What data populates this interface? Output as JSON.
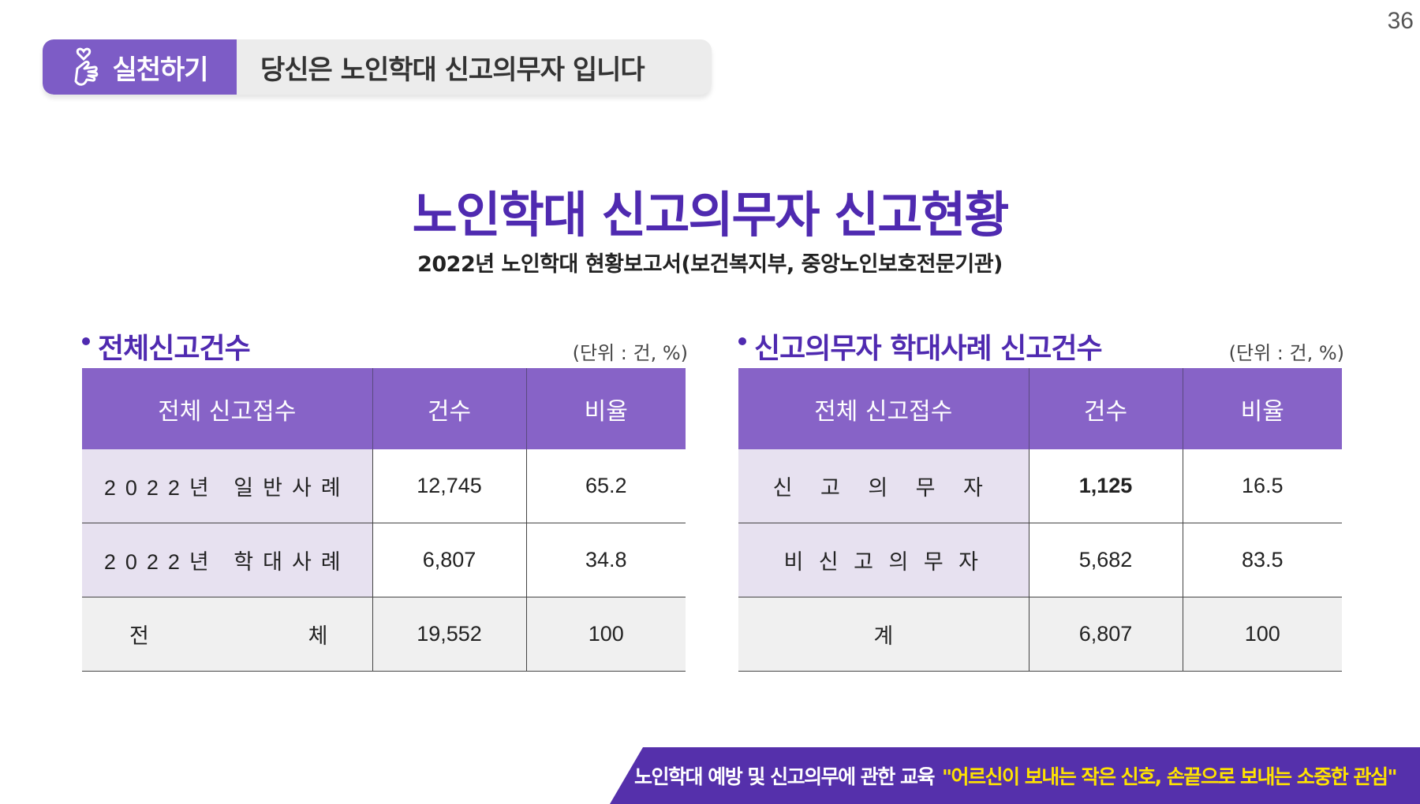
{
  "page_number": "36",
  "header": {
    "tag_label": "실천하기",
    "title": "당신은 노인학대 신고의무자 입니다",
    "colors": {
      "accent": "#7d5cc6",
      "pill_bg": "#ececec"
    }
  },
  "main": {
    "title": "노인학대 신고의무자 신고현황",
    "subtitle": "2022년 노인학대 현황보고서(보건복지부, 중앙노인보호전문기관)"
  },
  "table_left": {
    "section_title": "전체신고건수",
    "unit": "(단위 : 건, %)",
    "headers": [
      "전체 신고접수",
      "건수",
      "비율"
    ],
    "rows": [
      {
        "label": "2022년 일반사례",
        "count": "12,745",
        "ratio": "65.2"
      },
      {
        "label": "2022년 학대사례",
        "count": "6,807",
        "ratio": "34.8"
      }
    ],
    "total": {
      "label_a": "전",
      "label_b": "체",
      "count": "19,552",
      "ratio": "100"
    }
  },
  "table_right": {
    "section_title": "신고의무자 학대사례 신고건수",
    "unit": "(단위 : 건, %)",
    "headers": [
      "전체 신고접수",
      "건수",
      "비율"
    ],
    "rows": [
      {
        "label": "신 고 의 무 자",
        "count": "1,125",
        "ratio": "16.5"
      },
      {
        "label": "비 신 고 의 무 자",
        "count": "5,682",
        "ratio": "83.5"
      }
    ],
    "total": {
      "label": "계",
      "count": "6,807",
      "ratio": "100"
    }
  },
  "footer": {
    "text": "노인학대 예방 및 신고의무에 관한 교육",
    "quote": "\"어르신이 보내는 작은 신호, 손끝으로 보내는 소중한 관심\"",
    "colors": {
      "bg": "#5530ab",
      "quote": "#ffe300"
    }
  },
  "icons": {
    "header_tag": "finger-heart-icon"
  }
}
